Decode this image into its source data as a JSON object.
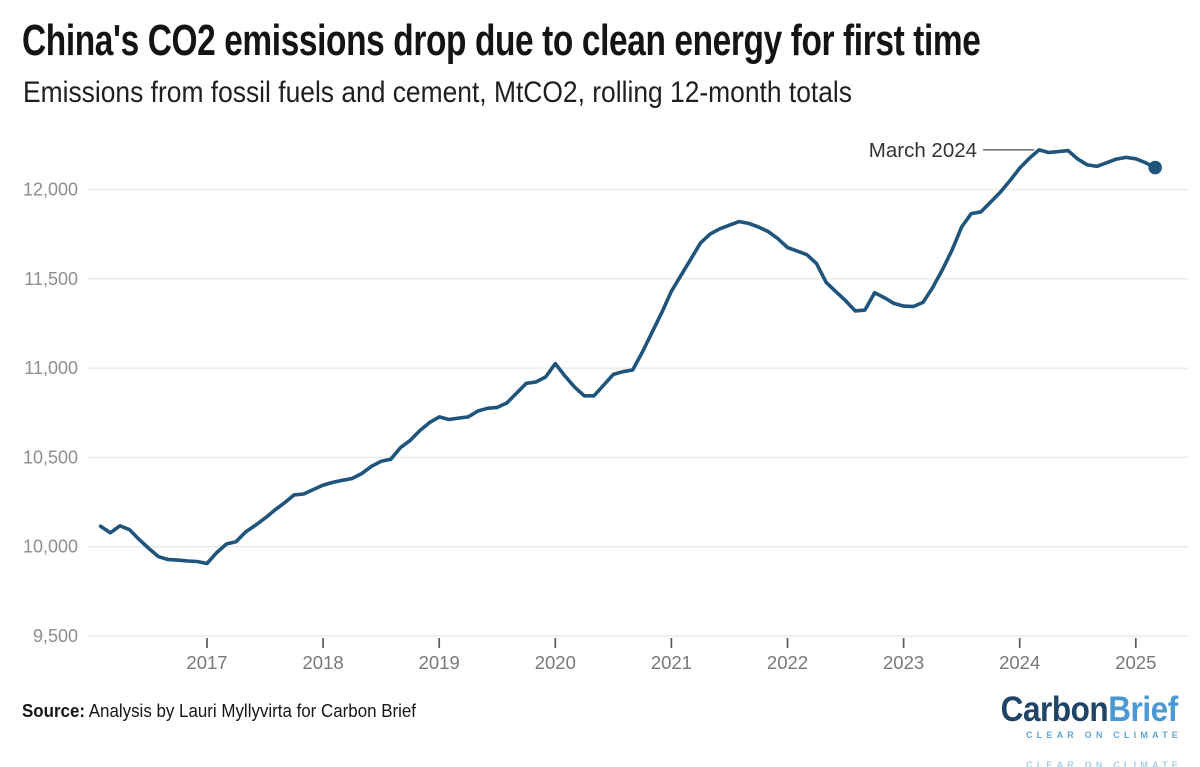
{
  "header": {
    "title": "China's CO2 emissions drop due to clean energy for first time",
    "subtitle": "Emissions from fossil fuels and cement, MtCO2, rolling 12-month totals"
  },
  "chart_data": {
    "type": "line",
    "title": "China's CO2 emissions drop due to clean energy for first time",
    "subtitle": "Emissions from fossil fuels and cement, MtCO2, rolling 12-month totals",
    "xlabel": "",
    "ylabel": "MtCO2, rolling 12-month totals",
    "grid": "horizontal",
    "legend": "none",
    "ylim": [
      9500,
      12280
    ],
    "xlim": [
      2016.0,
      2025.45
    ],
    "y_ticks": [
      9500,
      10000,
      10500,
      11000,
      11500,
      12000
    ],
    "x_ticks": [
      2017,
      2018,
      2019,
      2020,
      2021,
      2022,
      2023,
      2024,
      2025
    ],
    "annotation": {
      "label": "March 2024",
      "date": "2024-03"
    },
    "end_marker": true,
    "series": [
      {
        "name": "Emissions from fossil fuels and cement (MtCO2, rolling 12-month total)",
        "color": "#1f547c",
        "points": [
          [
            "2016-02",
            10115
          ],
          [
            "2016-03",
            10078
          ],
          [
            "2016-04",
            10117
          ],
          [
            "2016-05",
            10095
          ],
          [
            "2016-06",
            10040
          ],
          [
            "2016-07",
            9990
          ],
          [
            "2016-08",
            9944
          ],
          [
            "2016-09",
            9928
          ],
          [
            "2016-10",
            9925
          ],
          [
            "2016-11",
            9920
          ],
          [
            "2016-12",
            9917
          ],
          [
            "2017-01",
            9906
          ],
          [
            "2017-02",
            9967
          ],
          [
            "2017-03",
            10015
          ],
          [
            "2017-04",
            10028
          ],
          [
            "2017-05",
            10083
          ],
          [
            "2017-06",
            10120
          ],
          [
            "2017-07",
            10160
          ],
          [
            "2017-08",
            10205
          ],
          [
            "2017-09",
            10245
          ],
          [
            "2017-10",
            10290
          ],
          [
            "2017-11",
            10295
          ],
          [
            "2017-12",
            10320
          ],
          [
            "2018-01",
            10345
          ],
          [
            "2018-02",
            10360
          ],
          [
            "2018-03",
            10372
          ],
          [
            "2018-04",
            10382
          ],
          [
            "2018-05",
            10410
          ],
          [
            "2018-06",
            10450
          ],
          [
            "2018-07",
            10478
          ],
          [
            "2018-08",
            10490
          ],
          [
            "2018-09",
            10555
          ],
          [
            "2018-10",
            10595
          ],
          [
            "2018-11",
            10650
          ],
          [
            "2018-12",
            10695
          ],
          [
            "2019-01",
            10727
          ],
          [
            "2019-02",
            10712
          ],
          [
            "2019-03",
            10720
          ],
          [
            "2019-04",
            10727
          ],
          [
            "2019-05",
            10760
          ],
          [
            "2019-06",
            10775
          ],
          [
            "2019-07",
            10780
          ],
          [
            "2019-08",
            10805
          ],
          [
            "2019-09",
            10860
          ],
          [
            "2019-10",
            10915
          ],
          [
            "2019-11",
            10922
          ],
          [
            "2019-12",
            10950
          ],
          [
            "2020-01",
            11025
          ],
          [
            "2020-02",
            10955
          ],
          [
            "2020-03",
            10893
          ],
          [
            "2020-04",
            10845
          ],
          [
            "2020-05",
            10845
          ],
          [
            "2020-06",
            10905
          ],
          [
            "2020-07",
            10965
          ],
          [
            "2020-08",
            10980
          ],
          [
            "2020-09",
            10990
          ],
          [
            "2020-10",
            11090
          ],
          [
            "2020-11",
            11200
          ],
          [
            "2020-12",
            11310
          ],
          [
            "2021-01",
            11430
          ],
          [
            "2021-02",
            11520
          ],
          [
            "2021-03",
            11610
          ],
          [
            "2021-04",
            11700
          ],
          [
            "2021-05",
            11750
          ],
          [
            "2021-06",
            11780
          ],
          [
            "2021-07",
            11800
          ],
          [
            "2021-08",
            11820
          ],
          [
            "2021-09",
            11810
          ],
          [
            "2021-10",
            11790
          ],
          [
            "2021-11",
            11765
          ],
          [
            "2021-12",
            11725
          ],
          [
            "2022-01",
            11675
          ],
          [
            "2022-02",
            11655
          ],
          [
            "2022-03",
            11635
          ],
          [
            "2022-04",
            11585
          ],
          [
            "2022-05",
            11480
          ],
          [
            "2022-06",
            11428
          ],
          [
            "2022-07",
            11378
          ],
          [
            "2022-08",
            11320
          ],
          [
            "2022-09",
            11325
          ],
          [
            "2022-10",
            11422
          ],
          [
            "2022-11",
            11395
          ],
          [
            "2022-12",
            11362
          ],
          [
            "2023-01",
            11347
          ],
          [
            "2023-02",
            11345
          ],
          [
            "2023-03",
            11368
          ],
          [
            "2023-04",
            11450
          ],
          [
            "2023-05",
            11550
          ],
          [
            "2023-06",
            11660
          ],
          [
            "2023-07",
            11790
          ],
          [
            "2023-08",
            11865
          ],
          [
            "2023-09",
            11875
          ],
          [
            "2023-10",
            11930
          ],
          [
            "2023-11",
            11985
          ],
          [
            "2023-12",
            12050
          ],
          [
            "2024-01",
            12120
          ],
          [
            "2024-02",
            12175
          ],
          [
            "2024-03",
            12222
          ],
          [
            "2024-04",
            12207
          ],
          [
            "2024-05",
            12212
          ],
          [
            "2024-06",
            12218
          ],
          [
            "2024-07",
            12170
          ],
          [
            "2024-08",
            12138
          ],
          [
            "2024-09",
            12130
          ],
          [
            "2024-10",
            12150
          ],
          [
            "2024-11",
            12170
          ],
          [
            "2024-12",
            12180
          ],
          [
            "2025-01",
            12172
          ],
          [
            "2025-02",
            12150
          ],
          [
            "2025-03",
            12123
          ]
        ]
      }
    ]
  },
  "footer": {
    "source_label": "Source:",
    "source_text": " Analysis by Lauri Myllyvirta for Carbon Brief"
  },
  "logo": {
    "part1": "Carbon",
    "part2": "Brief",
    "tagline": "CLEAR ON CLIMATE",
    "part1_color": "#1f4466",
    "part2_color": "#4a99d2",
    "tagline_color": "#62a5d2"
  },
  "colors": {
    "line": "#1f547c",
    "grid": "#e8e8e8",
    "x_tick_mark": "#5a5a5a",
    "x_tick_label": "#787878",
    "y_tick_label": "#8e8e8e",
    "annotation_text": "#333333",
    "annotation_connector": "#777777"
  }
}
